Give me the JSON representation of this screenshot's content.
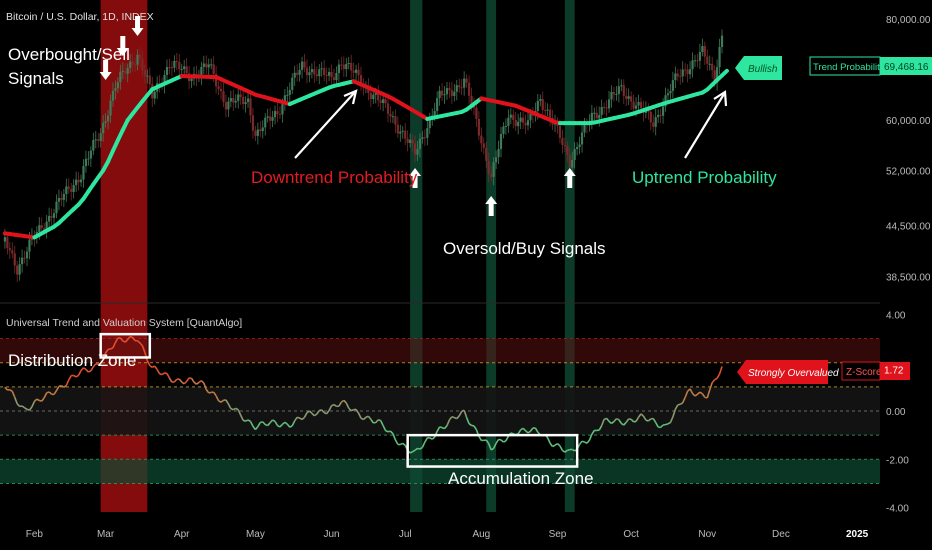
{
  "header": {
    "symbol_title": "Bitcoin / U.S. Dollar, 1D, INDEX",
    "indicator_title": "Universal Trend and Valuation System [QuantAlgo]"
  },
  "chart_data": [
    {
      "type": "candlestick",
      "symbol": "Bitcoin / U.S. Dollar, 1D, INDEX",
      "xlabel": "",
      "ylabel": "",
      "x_ticks": [
        "Feb",
        "Mar",
        "Apr",
        "May",
        "Jun",
        "Jul",
        "Aug",
        "Sep",
        "Oct",
        "Nov",
        "Dec",
        "2025"
      ],
      "y_ticks": [
        "80,000.00",
        "60,000.00",
        "52,000.00",
        "44,500.00",
        "38,500.00"
      ],
      "y_range": [
        36000,
        82500
      ],
      "scale": "log",
      "series": [
        {
          "name": "Trend Probability",
          "points": [
            [
              "2024-01-20",
              43500
            ],
            [
              "2024-02-01",
              43000
            ],
            [
              "2024-02-10",
              44500
            ],
            [
              "2024-02-20",
              47500
            ],
            [
              "2024-03-01",
              52500
            ],
            [
              "2024-03-10",
              60000
            ],
            [
              "2024-03-20",
              65500
            ],
            [
              "2024-04-01",
              68000
            ],
            [
              "2024-04-15",
              67800
            ],
            [
              "2024-05-01",
              64500
            ],
            [
              "2024-05-15",
              62800
            ],
            [
              "2024-06-01",
              66000
            ],
            [
              "2024-06-10",
              67000
            ],
            [
              "2024-06-25",
              64000
            ],
            [
              "2024-07-10",
              60200
            ],
            [
              "2024-07-25",
              61500
            ],
            [
              "2024-08-01",
              63800
            ],
            [
              "2024-08-15",
              62500
            ],
            [
              "2024-09-01",
              59500
            ],
            [
              "2024-09-15",
              59500
            ],
            [
              "2024-10-01",
              61000
            ],
            [
              "2024-10-15",
              63000
            ],
            [
              "2024-10-31",
              65000
            ],
            [
              "2024-11-10",
              69468
            ]
          ]
        }
      ],
      "price_path": [
        [
          "2024-01-20",
          42500
        ],
        [
          "2024-01-25",
          39500
        ],
        [
          "2024-02-01",
          43000
        ],
        [
          "2024-02-10",
          47000
        ],
        [
          "2024-02-20",
          51500
        ],
        [
          "2024-02-28",
          58000
        ],
        [
          "2024-03-05",
          66000
        ],
        [
          "2024-03-14",
          72500
        ],
        [
          "2024-03-20",
          64000
        ],
        [
          "2024-03-27",
          70500
        ],
        [
          "2024-04-05",
          68000
        ],
        [
          "2024-04-12",
          70000
        ],
        [
          "2024-04-19",
          63000
        ],
        [
          "2024-04-28",
          63500
        ],
        [
          "2024-05-01",
          57500
        ],
        [
          "2024-05-10",
          61500
        ],
        [
          "2024-05-20",
          70000
        ],
        [
          "2024-06-01",
          67500
        ],
        [
          "2024-06-05",
          71000
        ],
        [
          "2024-06-15",
          66000
        ],
        [
          "2024-06-25",
          61000
        ],
        [
          "2024-07-05",
          54500
        ],
        [
          "2024-07-15",
          64000
        ],
        [
          "2024-07-25",
          67000
        ],
        [
          "2024-08-05",
          51000
        ],
        [
          "2024-08-12",
          61000
        ],
        [
          "2024-08-20",
          59000
        ],
        [
          "2024-08-25",
          64000
        ],
        [
          "2024-09-06",
          53500
        ],
        [
          "2024-09-15",
          60500
        ],
        [
          "2024-09-27",
          65500
        ],
        [
          "2024-10-10",
          59500
        ],
        [
          "2024-10-20",
          68000
        ],
        [
          "2024-10-30",
          72500
        ],
        [
          "2024-11-04",
          68000
        ],
        [
          "2024-11-07",
          76500
        ]
      ],
      "signals": {
        "sell": [
          "2024-03-01",
          "2024-03-08",
          "2024-03-14"
        ],
        "buy": [
          "2024-07-05",
          "2024-08-05",
          "2024-09-06"
        ]
      },
      "annotations": [
        {
          "text": "Overbought/Sell\nSignals"
        },
        {
          "text": "Downtrend Probability"
        },
        {
          "text": "Oversold/Buy Signals"
        },
        {
          "text": "Uptrend Probability"
        },
        {
          "text": "Bullish"
        }
      ],
      "readout": {
        "label": "Trend Probability",
        "value": "69,468.16"
      }
    },
    {
      "type": "line",
      "name": "Universal Trend and Valuation System [QuantAlgo]",
      "y_ticks": [
        "4.00",
        "1.72",
        "0.00",
        "-2.00",
        "-4.00"
      ],
      "y_range": [
        -4.1,
        4.1
      ],
      "reference_lines": [
        3,
        2,
        1,
        0,
        -1,
        -2,
        -3
      ],
      "series": [
        {
          "name": "Z-Score",
          "points": [
            [
              "2024-01-20",
              1.0
            ],
            [
              "2024-01-28",
              0.1
            ],
            [
              "2024-02-05",
              0.5
            ],
            [
              "2024-02-15",
              1.3
            ],
            [
              "2024-02-25",
              1.8
            ],
            [
              "2024-03-05",
              2.8
            ],
            [
              "2024-03-14",
              3.1
            ],
            [
              "2024-03-20",
              1.7
            ],
            [
              "2024-03-30",
              1.3
            ],
            [
              "2024-04-10",
              1.1
            ],
            [
              "2024-04-20",
              0.2
            ],
            [
              "2024-05-01",
              -0.6
            ],
            [
              "2024-05-15",
              -0.5
            ],
            [
              "2024-05-25",
              -0.1
            ],
            [
              "2024-06-05",
              0.3
            ],
            [
              "2024-06-20",
              -0.5
            ],
            [
              "2024-07-05",
              -1.8
            ],
            [
              "2024-07-15",
              -0.7
            ],
            [
              "2024-07-25",
              -0.1
            ],
            [
              "2024-08-05",
              -1.6
            ],
            [
              "2024-08-15",
              -0.8
            ],
            [
              "2024-08-25",
              -0.9
            ],
            [
              "2024-09-06",
              -1.8
            ],
            [
              "2024-09-20",
              -0.5
            ],
            [
              "2024-10-05",
              -0.3
            ],
            [
              "2024-10-15",
              -0.6
            ],
            [
              "2024-10-25",
              0.8
            ],
            [
              "2024-11-01",
              0.7
            ],
            [
              "2024-11-07",
              1.72
            ]
          ]
        }
      ],
      "zones": [
        {
          "name": "Distribution Zone",
          "from": 2,
          "to": 3
        },
        {
          "name": "Accumulation Zone",
          "from": -3,
          "to": -2
        }
      ],
      "readout": {
        "badge": "Strongly Overvalued",
        "label": "Z-Score",
        "value": "1.72"
      }
    }
  ],
  "highlight_bands": [
    {
      "kind": "overbought",
      "from": "2024-02-28",
      "to": "2024-03-18",
      "color": "#8b0d0d"
    },
    {
      "kind": "oversold",
      "from": "2024-07-03",
      "to": "2024-07-08",
      "color": "#0f4a33"
    },
    {
      "kind": "oversold",
      "from": "2024-08-03",
      "to": "2024-08-07",
      "color": "#0f4a33"
    },
    {
      "kind": "oversold",
      "from": "2024-09-04",
      "to": "2024-09-08",
      "color": "#0f4a33"
    }
  ],
  "colors": {
    "bullish": "#2ee6a0",
    "bearish": "#e0121b",
    "up_candle": "#3f7a5a",
    "down_candle": "#7a2a2a",
    "distribution_zone": "#5a1111",
    "accumulation_zone": "#0e4a33",
    "axis_text": "#bbbbbb"
  },
  "icons": {
    "signal_arrow": "white-arrow-icon"
  }
}
